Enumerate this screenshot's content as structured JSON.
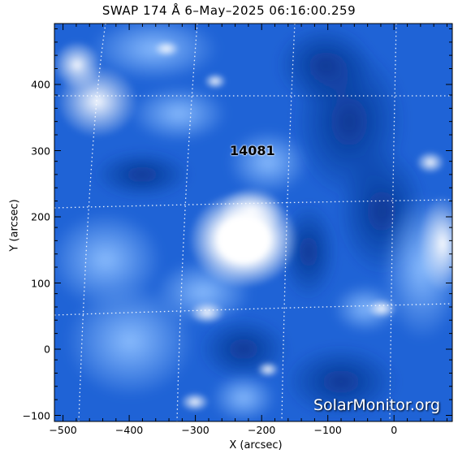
{
  "title": "SWAP 174 Å  6–May–2025 06:16:00.259",
  "xlabel": "X (arcsec)",
  "ylabel": "Y (arcsec)",
  "region_label": "14081",
  "watermark": "SolarMonitor.org",
  "xticks": [
    "−500",
    "−400",
    "−300",
    "−200",
    "−100",
    "0"
  ],
  "yticks": [
    "400",
    "300",
    "200",
    "100",
    "0",
    "−100"
  ],
  "xlim": [
    -513,
    88
  ],
  "ylim": [
    -113,
    488
  ],
  "colors": {
    "bright": "#ffffff",
    "mid": "#1f6fe0",
    "dark": "#0a3a9c",
    "frame": "#000000"
  }
}
